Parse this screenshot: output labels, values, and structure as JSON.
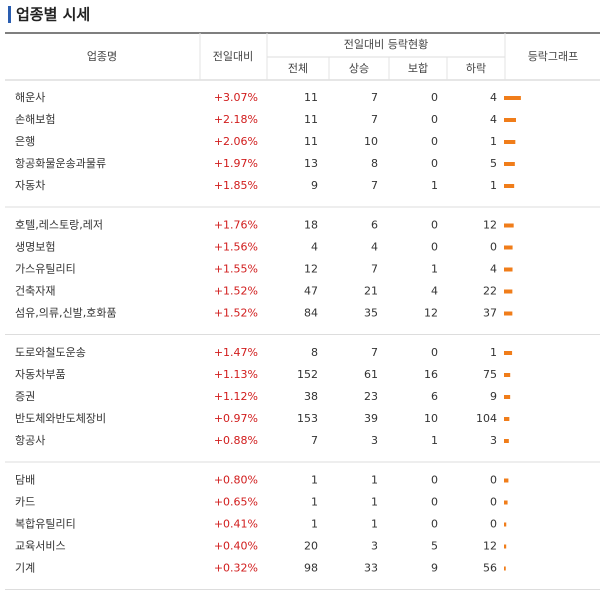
{
  "title": "업종별 시세",
  "table": {
    "header": {
      "name": "업종명",
      "change": "전일대비",
      "status": "전일대비 등락현황",
      "total": "전체",
      "up": "상승",
      "flat": "보합",
      "down": "하락",
      "graph": "등락그래프"
    },
    "groups": [
      [
        {
          "name": "해운사",
          "change": {
            "value": 3.07,
            "label": "+3.07%"
          },
          "total": 11,
          "up": 7,
          "flat": 0,
          "down": 4
        },
        {
          "name": "손해보험",
          "change": {
            "value": 2.18,
            "label": "+2.18%"
          },
          "total": 11,
          "up": 7,
          "flat": 0,
          "down": 4
        },
        {
          "name": "은행",
          "change": {
            "value": 2.06,
            "label": "+2.06%"
          },
          "total": 11,
          "up": 10,
          "flat": 0,
          "down": 1
        },
        {
          "name": "항공화물운송과물류",
          "change": {
            "value": 1.97,
            "label": "+1.97%"
          },
          "total": 13,
          "up": 8,
          "flat": 0,
          "down": 5
        },
        {
          "name": "자동차",
          "change": {
            "value": 1.85,
            "label": "+1.85%"
          },
          "total": 9,
          "up": 7,
          "flat": 1,
          "down": 1
        }
      ],
      [
        {
          "name": "호텔,레스토랑,레저",
          "change": {
            "value": 1.76,
            "label": "+1.76%"
          },
          "total": 18,
          "up": 6,
          "flat": 0,
          "down": 12
        },
        {
          "name": "생명보험",
          "change": {
            "value": 1.56,
            "label": "+1.56%"
          },
          "total": 4,
          "up": 4,
          "flat": 0,
          "down": 0
        },
        {
          "name": "가스유틸리티",
          "change": {
            "value": 1.55,
            "label": "+1.55%"
          },
          "total": 12,
          "up": 7,
          "flat": 1,
          "down": 4
        },
        {
          "name": "건축자재",
          "change": {
            "value": 1.52,
            "label": "+1.52%"
          },
          "total": 47,
          "up": 21,
          "flat": 4,
          "down": 22
        },
        {
          "name": "섬유,의류,신발,호화품",
          "change": {
            "value": 1.52,
            "label": "+1.52%"
          },
          "total": 84,
          "up": 35,
          "flat": 12,
          "down": 37
        }
      ],
      [
        {
          "name": "도로와철도운송",
          "change": {
            "value": 1.47,
            "label": "+1.47%"
          },
          "total": 8,
          "up": 7,
          "flat": 0,
          "down": 1
        },
        {
          "name": "자동차부품",
          "change": {
            "value": 1.13,
            "label": "+1.13%"
          },
          "total": 152,
          "up": 61,
          "flat": 16,
          "down": 75
        },
        {
          "name": "증권",
          "change": {
            "value": 1.12,
            "label": "+1.12%"
          },
          "total": 38,
          "up": 23,
          "flat": 6,
          "down": 9
        },
        {
          "name": "반도체와반도체장비",
          "change": {
            "value": 0.97,
            "label": "+0.97%"
          },
          "total": 153,
          "up": 39,
          "flat": 10,
          "down": 104
        },
        {
          "name": "항공사",
          "change": {
            "value": 0.88,
            "label": "+0.88%"
          },
          "total": 7,
          "up": 3,
          "flat": 1,
          "down": 3
        }
      ],
      [
        {
          "name": "담배",
          "change": {
            "value": 0.8,
            "label": "+0.80%"
          },
          "total": 1,
          "up": 1,
          "flat": 0,
          "down": 0
        },
        {
          "name": "카드",
          "change": {
            "value": 0.65,
            "label": "+0.65%"
          },
          "total": 1,
          "up": 1,
          "flat": 0,
          "down": 0
        },
        {
          "name": "복합유틸리티",
          "change": {
            "value": 0.41,
            "label": "+0.41%"
          },
          "total": 1,
          "up": 1,
          "flat": 0,
          "down": 0
        },
        {
          "name": "교육서비스",
          "change": {
            "value": 0.4,
            "label": "+0.40%"
          },
          "total": 20,
          "up": 3,
          "flat": 5,
          "down": 12
        },
        {
          "name": "기계",
          "change": {
            "value": 0.32,
            "label": "+0.32%"
          },
          "total": 98,
          "up": 33,
          "flat": 9,
          "down": 56
        }
      ]
    ]
  }
}
